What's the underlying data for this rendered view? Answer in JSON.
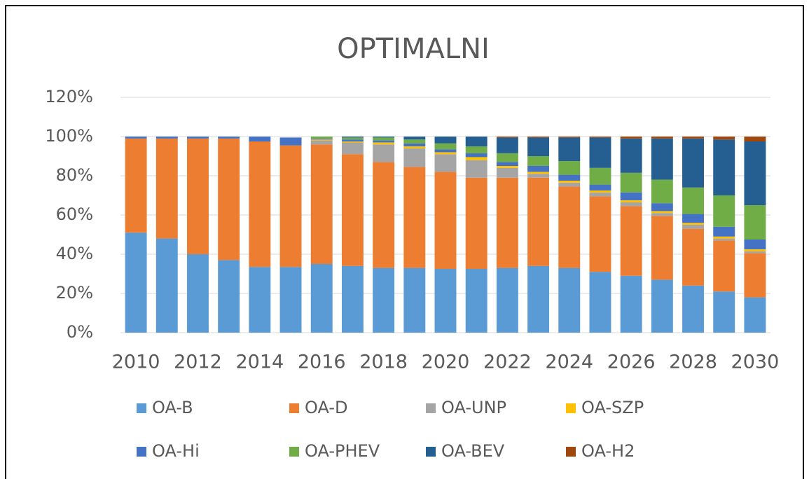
{
  "chart_data": {
    "type": "stacked_bar",
    "title": "OPTIMALNI",
    "categories": [
      "2010",
      null,
      "2012",
      null,
      "2014",
      null,
      "2016",
      null,
      "2018",
      null,
      "2020",
      null,
      "2022",
      null,
      "2024",
      null,
      "2026",
      null,
      "2028",
      null,
      "2030"
    ],
    "series": [
      {
        "name": "OA-B",
        "color": "#5b9bd5",
        "values": [
          51,
          48,
          40,
          37,
          33.5,
          33.5,
          35,
          34,
          33,
          33,
          32.5,
          32.5,
          33,
          34,
          33,
          31,
          29,
          27,
          24,
          21,
          18
        ]
      },
      {
        "name": "OA-D",
        "color": "#ed7d31",
        "values": [
          48,
          51,
          59,
          62,
          64,
          62,
          61,
          57,
          54,
          51.5,
          49.5,
          46.5,
          46,
          45,
          41.5,
          38.5,
          35.5,
          32.5,
          29,
          26,
          22.5
        ]
      },
      {
        "name": "OA-UNP",
        "color": "#a5a5a5",
        "values": [
          0,
          0,
          0,
          0,
          0,
          0,
          2,
          6,
          9,
          9.5,
          9,
          9,
          5,
          2,
          2,
          2,
          2,
          1.5,
          2,
          1,
          1
        ]
      },
      {
        "name": "OA-SZP",
        "color": "#ffc000",
        "values": [
          0,
          0,
          0,
          0,
          0,
          0,
          0.5,
          0.5,
          1,
          1,
          1,
          1.5,
          1,
          1,
          1,
          1,
          1,
          1,
          1,
          1,
          1
        ]
      },
      {
        "name": "OA-Hi",
        "color": "#4472c4",
        "values": [
          1,
          1,
          1,
          1,
          2.5,
          4,
          0.5,
          1,
          1,
          1.5,
          1.5,
          2,
          2,
          3,
          3,
          3,
          4,
          4,
          4.5,
          5,
          5
        ]
      },
      {
        "name": "OA-PHEV",
        "color": "#70ad47",
        "values": [
          0,
          0,
          0,
          0,
          0,
          0,
          1,
          1,
          1.5,
          2,
          3,
          3.5,
          4.5,
          5,
          7,
          8.5,
          10,
          12,
          13.5,
          16,
          17.5
        ]
      },
      {
        "name": "OA-BEV",
        "color": "#255e91",
        "values": [
          0,
          0,
          0,
          0,
          0,
          0,
          0,
          0.5,
          0.5,
          1.5,
          3.5,
          5,
          8,
          9.5,
          12,
          15.5,
          17.5,
          21,
          25,
          28.5,
          32.5
        ]
      },
      {
        "name": "OA-H2",
        "color": "#9e480e",
        "values": [
          0,
          0,
          0,
          0,
          0,
          0,
          0,
          0,
          0,
          0,
          0,
          0,
          0.5,
          0.5,
          0.5,
          0.5,
          1,
          1,
          1,
          1.5,
          2.5
        ]
      }
    ],
    "ylim": [
      0,
      120
    ],
    "yticks": [
      {
        "value": 0,
        "label": "0%"
      },
      {
        "value": 20,
        "label": "20%"
      },
      {
        "value": 40,
        "label": "40%"
      },
      {
        "value": 60,
        "label": "60%"
      },
      {
        "value": 80,
        "label": "80%"
      },
      {
        "value": 100,
        "label": "100%"
      },
      {
        "value": 120,
        "label": "120%"
      }
    ],
    "grid": true
  }
}
